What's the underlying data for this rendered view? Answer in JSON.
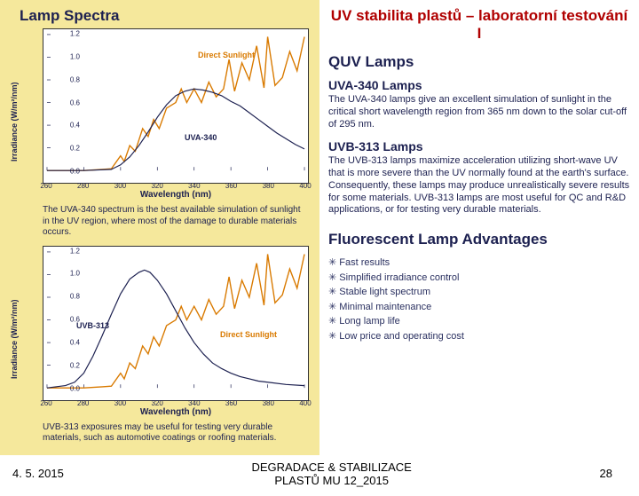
{
  "slide_title": "UV stabilita plastů – laboratorní testování I",
  "left": {
    "title": "Lamp Spectra",
    "ylab": "Irradiance (W/m²/nm)",
    "xlab": "Wavelength (nm)",
    "chart1": {
      "xlim": [
        260,
        400
      ],
      "ylim": [
        0,
        1.2
      ],
      "xticks": [
        260,
        280,
        300,
        320,
        340,
        360,
        380,
        400
      ],
      "yticks": [
        "0.0",
        "0.2",
        "0.4",
        "0.6",
        "0.8",
        "1.0",
        "1.2"
      ],
      "sunlight_color": "#d97a00",
      "sunlight_width": 1.4,
      "lamp_color": "#1c2050",
      "lamp_width": 1.2,
      "sunlight": [
        [
          260,
          0.0
        ],
        [
          280,
          0.0
        ],
        [
          290,
          0.01
        ],
        [
          295,
          0.015
        ],
        [
          300,
          0.13
        ],
        [
          302,
          0.08
        ],
        [
          305,
          0.22
        ],
        [
          308,
          0.17
        ],
        [
          312,
          0.37
        ],
        [
          315,
          0.3
        ],
        [
          318,
          0.45
        ],
        [
          321,
          0.37
        ],
        [
          325,
          0.55
        ],
        [
          330,
          0.6
        ],
        [
          333,
          0.72
        ],
        [
          336,
          0.6
        ],
        [
          340,
          0.72
        ],
        [
          344,
          0.6
        ],
        [
          348,
          0.78
        ],
        [
          352,
          0.65
        ],
        [
          356,
          0.72
        ],
        [
          359,
          0.98
        ],
        [
          362,
          0.7
        ],
        [
          366,
          0.95
        ],
        [
          370,
          0.8
        ],
        [
          374,
          1.1
        ],
        [
          378,
          0.73
        ],
        [
          380,
          1.18
        ],
        [
          384,
          0.75
        ],
        [
          388,
          0.82
        ],
        [
          392,
          1.05
        ],
        [
          396,
          0.88
        ],
        [
          400,
          1.18
        ]
      ],
      "lamp": [
        [
          260,
          0.0
        ],
        [
          280,
          0.0
        ],
        [
          295,
          0.01
        ],
        [
          300,
          0.05
        ],
        [
          305,
          0.12
        ],
        [
          310,
          0.22
        ],
        [
          315,
          0.34
        ],
        [
          320,
          0.47
        ],
        [
          325,
          0.58
        ],
        [
          330,
          0.66
        ],
        [
          335,
          0.7
        ],
        [
          340,
          0.72
        ],
        [
          345,
          0.71
        ],
        [
          350,
          0.69
        ],
        [
          355,
          0.66
        ],
        [
          360,
          0.61
        ],
        [
          365,
          0.57
        ],
        [
          370,
          0.51
        ],
        [
          375,
          0.45
        ],
        [
          380,
          0.39
        ],
        [
          385,
          0.33
        ],
        [
          390,
          0.28
        ],
        [
          395,
          0.23
        ],
        [
          400,
          0.19
        ]
      ],
      "label_sun": "Direct Sunlight",
      "label_sun_xy": [
        175,
        25
      ],
      "label_lamp": "UVA-340",
      "label_lamp_xy": [
        160,
        118
      ],
      "caption": "The UVA-340 spectrum is the best available simulation of sunlight in the UV region, where most of the damage to durable materials occurs."
    },
    "chart2": {
      "xlim": [
        260,
        400
      ],
      "ylim": [
        0,
        1.2
      ],
      "sunlight": [
        [
          260,
          0.0
        ],
        [
          280,
          0.0
        ],
        [
          290,
          0.01
        ],
        [
          295,
          0.015
        ],
        [
          300,
          0.13
        ],
        [
          302,
          0.08
        ],
        [
          305,
          0.22
        ],
        [
          308,
          0.17
        ],
        [
          312,
          0.37
        ],
        [
          315,
          0.3
        ],
        [
          318,
          0.45
        ],
        [
          321,
          0.37
        ],
        [
          325,
          0.55
        ],
        [
          330,
          0.6
        ],
        [
          333,
          0.72
        ],
        [
          336,
          0.6
        ],
        [
          340,
          0.72
        ],
        [
          344,
          0.6
        ],
        [
          348,
          0.78
        ],
        [
          352,
          0.65
        ],
        [
          356,
          0.72
        ],
        [
          359,
          0.98
        ],
        [
          362,
          0.7
        ],
        [
          366,
          0.95
        ],
        [
          370,
          0.8
        ],
        [
          374,
          1.1
        ],
        [
          378,
          0.73
        ],
        [
          380,
          1.18
        ],
        [
          384,
          0.75
        ],
        [
          388,
          0.82
        ],
        [
          392,
          1.05
        ],
        [
          396,
          0.88
        ],
        [
          400,
          1.18
        ]
      ],
      "lamp": [
        [
          260,
          0.0
        ],
        [
          270,
          0.02
        ],
        [
          275,
          0.05
        ],
        [
          280,
          0.13
        ],
        [
          285,
          0.28
        ],
        [
          290,
          0.46
        ],
        [
          295,
          0.65
        ],
        [
          300,
          0.83
        ],
        [
          305,
          0.96
        ],
        [
          310,
          1.02
        ],
        [
          313,
          1.04
        ],
        [
          316,
          1.02
        ],
        [
          320,
          0.95
        ],
        [
          325,
          0.83
        ],
        [
          330,
          0.68
        ],
        [
          335,
          0.53
        ],
        [
          340,
          0.4
        ],
        [
          345,
          0.3
        ],
        [
          350,
          0.22
        ],
        [
          355,
          0.17
        ],
        [
          360,
          0.13
        ],
        [
          365,
          0.1
        ],
        [
          370,
          0.08
        ],
        [
          375,
          0.06
        ],
        [
          380,
          0.05
        ],
        [
          390,
          0.03
        ],
        [
          400,
          0.02
        ]
      ],
      "label_sun": "Direct Sunlight",
      "label_sun_xy": [
        200,
        95
      ],
      "label_lamp": "UVB-313",
      "label_lamp_xy": [
        38,
        85
      ],
      "caption": "UVB-313 exposures may be useful for testing very durable materials, such as automotive coatings or roofing materials."
    }
  },
  "right": {
    "section1": "QUV Lamps",
    "uva_h": "UVA-340 Lamps",
    "uva_t": "The UVA-340 lamps give an excellent simulation of sunlight in the critical short wavelength region from 365 nm down to the solar cut-off of 295 nm.",
    "uvb_h": "UVB-313 Lamps",
    "uvb_t": "The UVB-313 lamps maximize acceleration utilizing short-wave UV that is more severe than the UV normally found at the earth's surface. Consequently, these lamps may produce unrealistically severe results for some materials. UVB-313 lamps are most useful for QC and R&D applications, or for testing very durable materials.",
    "adv_h": "Fluorescent Lamp Advantages",
    "adv": [
      "Fast results",
      "Simplified irradiance control",
      "Stable light spectrum",
      "Minimal maintenance",
      "Long lamp life",
      "Low price and operating cost"
    ]
  },
  "footer": {
    "date": "4. 5. 2015",
    "center1": "DEGRADACE & STABILIZACE",
    "center2": "PLASTŮ MU 12_2015",
    "page": "28"
  }
}
